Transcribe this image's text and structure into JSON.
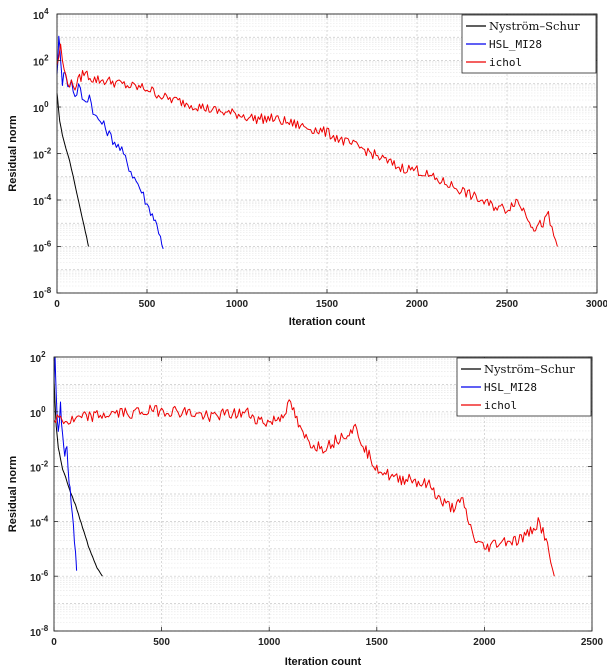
{
  "chart_data": [
    {
      "type": "line",
      "xlabel": "Iteration count",
      "ylabel": "Residual norm",
      "xlim": [
        0,
        3000
      ],
      "ylim_log10": [
        -8,
        4
      ],
      "yscale": "log",
      "grid": true,
      "legend_position": "top-right",
      "x_ticks": [
        "0",
        "500",
        "1000",
        "1500",
        "2000",
        "2500",
        "3000"
      ],
      "y_ticks": [
        {
          "base": "10",
          "exp": "4"
        },
        {
          "base": "10",
          "exp": "2"
        },
        {
          "base": "10",
          "exp": "0"
        },
        {
          "base": "10",
          "exp": "-2"
        },
        {
          "base": "10",
          "exp": "-4"
        },
        {
          "base": "10",
          "exp": "-6"
        },
        {
          "base": "10",
          "exp": "-8"
        }
      ],
      "series": [
        {
          "name": "Nyström–Schur",
          "color": "#000000",
          "font": "serif",
          "points": [
            [
              0,
              0.6
            ],
            [
              5,
              0.2
            ],
            [
              15,
              -0.6
            ],
            [
              30,
              -1.2
            ],
            [
              50,
              -1.8
            ],
            [
              70,
              -2.3
            ],
            [
              90,
              -3.0
            ],
            [
              110,
              -3.7
            ],
            [
              130,
              -4.4
            ],
            [
              150,
              -5.1
            ],
            [
              165,
              -5.6
            ],
            [
              175,
              -6.0
            ]
          ]
        },
        {
          "name": "HSL_MI28",
          "color": "#0000ee",
          "font": "mono",
          "points": [
            [
              0,
              1.4
            ],
            [
              10,
              2.9
            ],
            [
              20,
              2.2
            ],
            [
              30,
              1.1
            ],
            [
              45,
              1.6
            ],
            [
              60,
              0.8
            ],
            [
              80,
              1.2
            ],
            [
              100,
              0.4
            ],
            [
              120,
              0.9
            ],
            [
              150,
              0.2
            ],
            [
              180,
              0.5
            ],
            [
              210,
              -0.4
            ],
            [
              240,
              -0.6
            ],
            [
              270,
              -0.9
            ],
            [
              300,
              -1.3
            ],
            [
              330,
              -1.6
            ],
            [
              360,
              -1.9
            ],
            [
              390,
              -2.4
            ],
            [
              420,
              -2.9
            ],
            [
              450,
              -3.3
            ],
            [
              480,
              -3.8
            ],
            [
              500,
              -4.2
            ],
            [
              530,
              -4.6
            ],
            [
              555,
              -5.1
            ],
            [
              575,
              -5.5
            ],
            [
              590,
              -6.1
            ]
          ]
        },
        {
          "name": "ichol",
          "color": "#ee0000",
          "font": "mono",
          "points": [
            [
              0,
              1.8
            ],
            [
              20,
              2.6
            ],
            [
              40,
              1.5
            ],
            [
              70,
              1.0
            ],
            [
              100,
              0.9
            ],
            [
              150,
              1.5
            ],
            [
              200,
              1.2
            ],
            [
              300,
              1.1
            ],
            [
              400,
              0.9
            ],
            [
              500,
              0.8
            ],
            [
              600,
              0.4
            ],
            [
              700,
              0.2
            ],
            [
              800,
              0.0
            ],
            [
              900,
              -0.2
            ],
            [
              1000,
              -0.3
            ],
            [
              1100,
              -0.5
            ],
            [
              1200,
              -0.5
            ],
            [
              1300,
              -0.7
            ],
            [
              1400,
              -0.9
            ],
            [
              1500,
              -1.1
            ],
            [
              1600,
              -1.5
            ],
            [
              1700,
              -1.8
            ],
            [
              1800,
              -2.2
            ],
            [
              1900,
              -2.6
            ],
            [
              2000,
              -2.7
            ],
            [
              2100,
              -3.1
            ],
            [
              2200,
              -3.4
            ],
            [
              2300,
              -3.8
            ],
            [
              2400,
              -4.2
            ],
            [
              2500,
              -4.4
            ],
            [
              2550,
              -4.0
            ],
            [
              2600,
              -4.5
            ],
            [
              2650,
              -5.2
            ],
            [
              2700,
              -5.0
            ],
            [
              2730,
              -4.7
            ],
            [
              2760,
              -5.6
            ],
            [
              2780,
              -6.0
            ]
          ]
        }
      ]
    },
    {
      "type": "line",
      "xlabel": "Iteration count",
      "ylabel": "Residual norm",
      "xlim": [
        0,
        2500
      ],
      "ylim_log10": [
        -8,
        2
      ],
      "yscale": "log",
      "grid": true,
      "legend_position": "top-right",
      "x_ticks": [
        "0",
        "500",
        "1000",
        "1500",
        "2000",
        "2500"
      ],
      "y_ticks": [
        {
          "base": "10",
          "exp": "2"
        },
        {
          "base": "10",
          "exp": "0"
        },
        {
          "base": "10",
          "exp": "-2"
        },
        {
          "base": "10",
          "exp": "-4"
        },
        {
          "base": "10",
          "exp": "-6"
        },
        {
          "base": "10",
          "exp": "-8"
        }
      ],
      "series": [
        {
          "name": "Nyström–Schur",
          "color": "#000000",
          "font": "serif",
          "points": [
            [
              0,
              1.2
            ],
            [
              5,
              0.3
            ],
            [
              10,
              -0.5
            ],
            [
              20,
              -1.3
            ],
            [
              30,
              -1.7
            ],
            [
              40,
              -2.1
            ],
            [
              55,
              -2.4
            ],
            [
              70,
              -2.8
            ],
            [
              85,
              -3.1
            ],
            [
              100,
              -3.4
            ],
            [
              120,
              -3.9
            ],
            [
              140,
              -4.4
            ],
            [
              160,
              -4.9
            ],
            [
              180,
              -5.3
            ],
            [
              200,
              -5.7
            ],
            [
              225,
              -6.0
            ]
          ]
        },
        {
          "name": "HSL_MI28",
          "color": "#0000ee",
          "font": "mono",
          "points": [
            [
              0,
              1.0
            ],
            [
              5,
              1.8
            ],
            [
              10,
              0.5
            ],
            [
              20,
              -0.6
            ],
            [
              30,
              0.2
            ],
            [
              40,
              -1.0
            ],
            [
              50,
              -1.8
            ],
            [
              60,
              -1.2
            ],
            [
              70,
              -2.5
            ],
            [
              80,
              -3.3
            ],
            [
              90,
              -4.2
            ],
            [
              100,
              -5.0
            ],
            [
              105,
              -5.8
            ]
          ]
        },
        {
          "name": "ichol",
          "color": "#ee0000",
          "font": "mono",
          "points": [
            [
              0,
              -0.3
            ],
            [
              30,
              -0.2
            ],
            [
              60,
              -0.4
            ],
            [
              100,
              -0.3
            ],
            [
              150,
              -0.2
            ],
            [
              200,
              -0.15
            ],
            [
              300,
              -0.05
            ],
            [
              400,
              0.0
            ],
            [
              500,
              0.05
            ],
            [
              600,
              0.0
            ],
            [
              700,
              -0.15
            ],
            [
              800,
              -0.1
            ],
            [
              900,
              -0.05
            ],
            [
              950,
              -0.3
            ],
            [
              1000,
              -0.4
            ],
            [
              1050,
              -0.2
            ],
            [
              1100,
              0.3
            ],
            [
              1150,
              -0.8
            ],
            [
              1200,
              -1.2
            ],
            [
              1250,
              -1.3
            ],
            [
              1300,
              -1.1
            ],
            [
              1350,
              -0.8
            ],
            [
              1400,
              -0.6
            ],
            [
              1450,
              -1.4
            ],
            [
              1500,
              -2.0
            ],
            [
              1550,
              -2.3
            ],
            [
              1600,
              -2.5
            ],
            [
              1650,
              -2.4
            ],
            [
              1700,
              -2.6
            ],
            [
              1750,
              -2.7
            ],
            [
              1800,
              -3.3
            ],
            [
              1850,
              -3.5
            ],
            [
              1900,
              -3.3
            ],
            [
              1950,
              -4.6
            ],
            [
              2000,
              -5.0
            ],
            [
              2050,
              -4.8
            ],
            [
              2100,
              -4.7
            ],
            [
              2150,
              -4.7
            ],
            [
              2200,
              -4.5
            ],
            [
              2250,
              -4.0
            ],
            [
              2280,
              -4.5
            ],
            [
              2300,
              -5.2
            ],
            [
              2325,
              -6.0
            ]
          ]
        }
      ]
    }
  ]
}
